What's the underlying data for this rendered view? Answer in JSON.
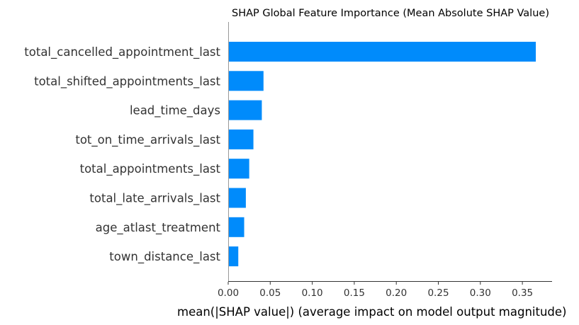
{
  "chart_data": {
    "type": "bar",
    "orientation": "horizontal",
    "title": "SHAP Global Feature Importance (Mean Absolute SHAP Value)",
    "xlabel": "mean(|SHAP value|) (average impact on model output magnitude)",
    "ylabel": "",
    "categories": [
      "total_cancelled_appointment_last",
      "total_shifted_appointments_last",
      "lead_time_days",
      "tot_on_time_arrivals_last",
      "total_appointments_last",
      "total_late_arrivals_last",
      "age_atlast_treatment",
      "town_distance_last"
    ],
    "values": [
      0.366,
      0.042,
      0.04,
      0.03,
      0.025,
      0.021,
      0.019,
      0.012
    ],
    "xlim": [
      0.0,
      0.385
    ],
    "xticks": [
      "0.00",
      "0.05",
      "0.10",
      "0.15",
      "0.20",
      "0.25",
      "0.30",
      "0.35"
    ],
    "bar_color": "#008bfb",
    "grid": false
  }
}
